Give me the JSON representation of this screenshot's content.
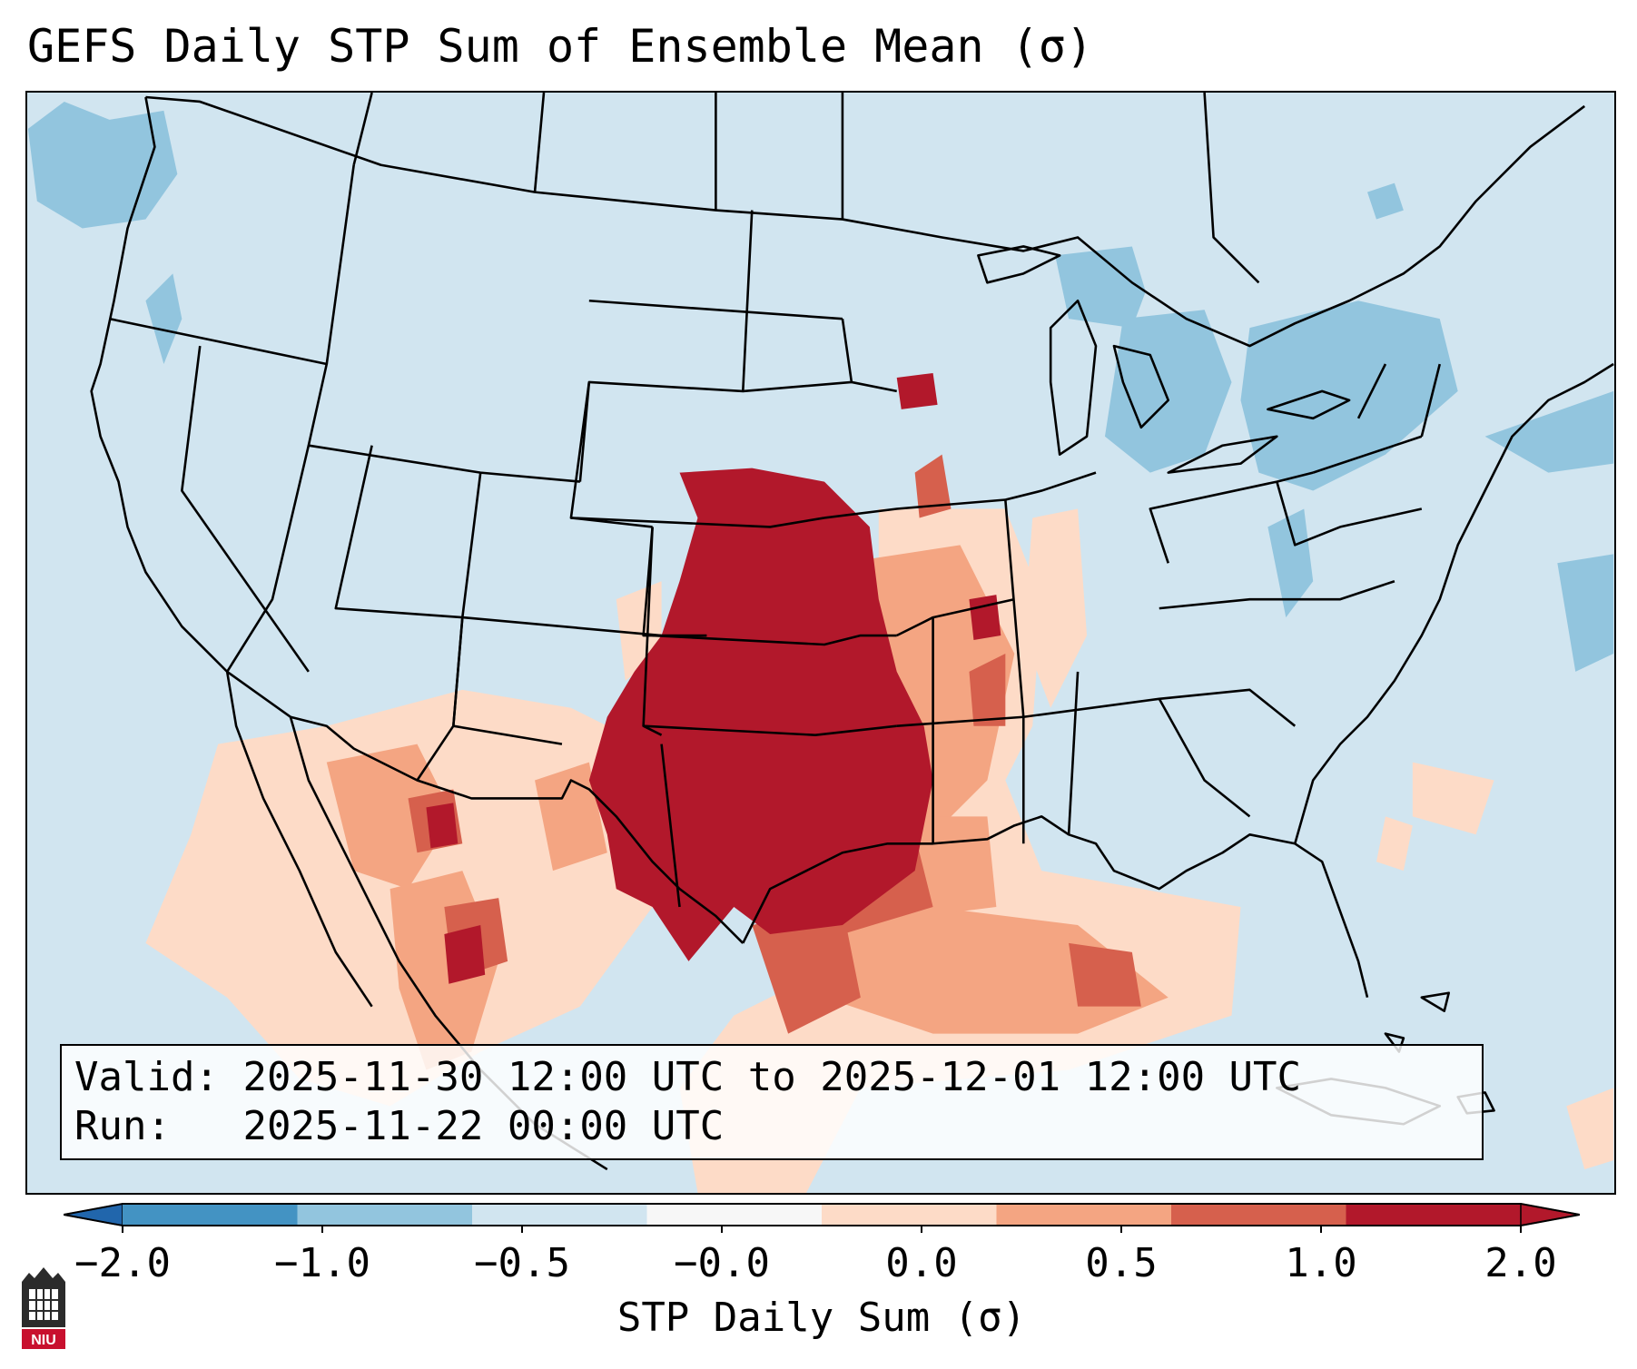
{
  "title": "GEFS Daily STP Sum of Ensemble Mean (σ)",
  "info": {
    "valid_label": "Valid:",
    "valid_value": "2025-11-30 12:00 UTC to 2025-12-01 12:00 UTC",
    "run_label": "Run:",
    "run_value": "2025-11-22 00:00 UTC"
  },
  "colorbar": {
    "label": "STP Daily Sum (σ)",
    "ticks": [
      "−2.0",
      "−1.0",
      "−0.5",
      "−0.0",
      "0.0",
      "0.5",
      "1.0",
      "2.0"
    ],
    "colors": [
      "#4393c3",
      "#92c5de",
      "#d1e5f0",
      "#f7f7f7",
      "#fddbc7",
      "#f4a582",
      "#d6604d",
      "#b2182b"
    ],
    "extend": "both"
  },
  "map": {
    "projection": "Lambert conformal, CONUS",
    "ocean_land_fill": "#d1e5f0",
    "boundary_color": "#000000",
    "features": [
      "US state borders",
      "Canada provinces",
      "Mexico states",
      "Great Lakes",
      "Caribbean islands"
    ],
    "anomaly_summary": [
      {
        "region": "Oklahoma, Texas, Kansas, Nebraska",
        "category": "> 1.0"
      },
      {
        "region": "Missouri, Arkansas, Louisiana, Gulf of Mexico",
        "category": "0.5 – 2.0"
      },
      {
        "region": "Great Lakes, New York, Pacific Northwest",
        "category": "−1.0 – −0.5"
      }
    ]
  },
  "logo": {
    "text": "NIU"
  }
}
